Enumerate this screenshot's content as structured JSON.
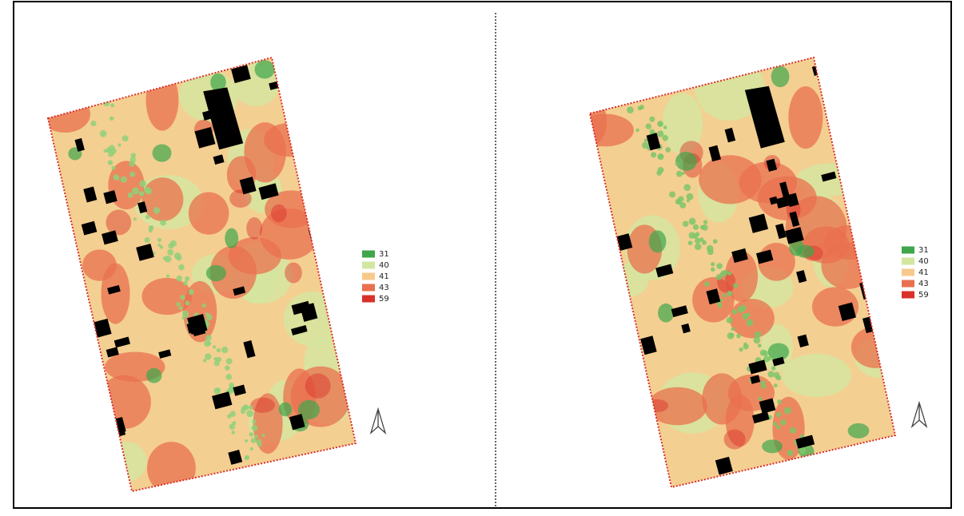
{
  "panels": [
    {
      "legend": [
        {
          "label": "31",
          "color": "#3fa64b"
        },
        {
          "label": "40",
          "color": "#d3e6a0"
        },
        {
          "label": "41",
          "color": "#f8c98c"
        },
        {
          "label": "43",
          "color": "#e9704f"
        },
        {
          "label": "59",
          "color": "#d9302a"
        }
      ]
    },
    {
      "legend": [
        {
          "label": "31",
          "color": "#3fa64b"
        },
        {
          "label": "40",
          "color": "#d3e6a0"
        },
        {
          "label": "41",
          "color": "#f8c98c"
        },
        {
          "label": "43",
          "color": "#e9704f"
        },
        {
          "label": "59",
          "color": "#d9302a"
        }
      ]
    }
  ]
}
